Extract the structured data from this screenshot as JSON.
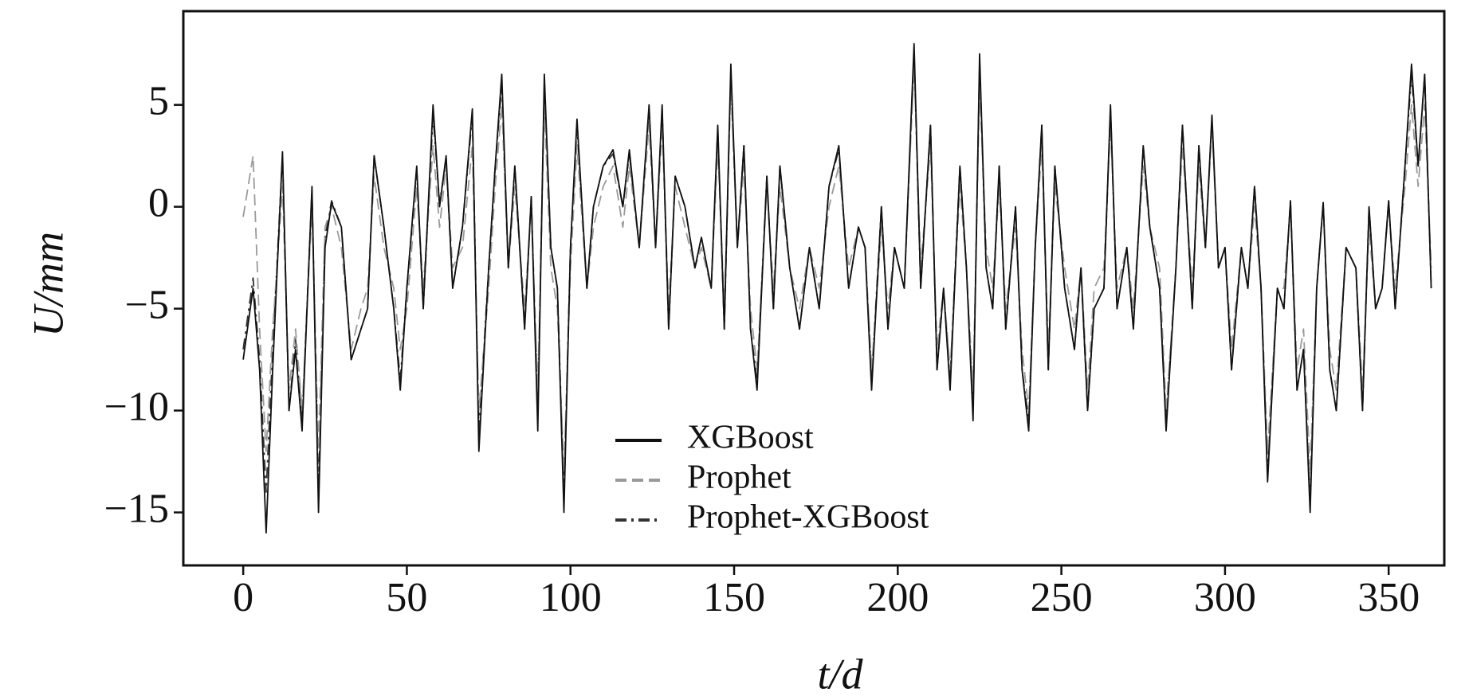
{
  "chart_data": {
    "type": "line",
    "xlabel": "t/d",
    "ylabel": "U/mm",
    "x": [
      0,
      3,
      5,
      7,
      9,
      12,
      14,
      16,
      18,
      21,
      23,
      25,
      27,
      30,
      33,
      36,
      38,
      40,
      43,
      46,
      48,
      50,
      53,
      55,
      58,
      60,
      62,
      64,
      67,
      70,
      72,
      75,
      77,
      79,
      81,
      83,
      86,
      88,
      90,
      92,
      94,
      96,
      98,
      100,
      102,
      105,
      107,
      110,
      113,
      116,
      118,
      121,
      124,
      126,
      128,
      130,
      132,
      135,
      138,
      140,
      143,
      145,
      147,
      149,
      151,
      153,
      155,
      157,
      160,
      162,
      164,
      167,
      170,
      173,
      176,
      179,
      182,
      185,
      188,
      190,
      192,
      195,
      197,
      199,
      202,
      205,
      207,
      210,
      212,
      214,
      216,
      219,
      221,
      223,
      225,
      227,
      229,
      231,
      233,
      236,
      238,
      240,
      242,
      244,
      246,
      248,
      251,
      254,
      256,
      258,
      260,
      263,
      265,
      267,
      270,
      272,
      275,
      277,
      280,
      282,
      285,
      287,
      290,
      292,
      294,
      296,
      298,
      300,
      302,
      305,
      307,
      309,
      311,
      313,
      316,
      318,
      320,
      322,
      324,
      326,
      328,
      330,
      332,
      334,
      337,
      340,
      342,
      344,
      346,
      348,
      350,
      352,
      355,
      357,
      359,
      361,
      363
    ],
    "series": [
      {
        "name": "XGBoost",
        "color": "#111111",
        "dash": "solid",
        "values": [
          -7.5,
          -4,
          -8,
          -16,
          -8,
          2.7,
          -10,
          -7,
          -11,
          1,
          -15,
          -2,
          0.2,
          -1,
          -7.5,
          -6,
          -5,
          2.5,
          -1,
          -5,
          -9,
          -4,
          2,
          -5,
          5,
          0,
          2.5,
          -4,
          -1,
          4.8,
          -12,
          -3,
          2,
          6.5,
          -3,
          2,
          -6,
          0.5,
          -11,
          6.5,
          -2,
          -4,
          -15,
          -2,
          4.3,
          -4,
          0,
          2,
          2.8,
          0,
          2.8,
          -2,
          5,
          -2,
          5,
          -6,
          1.5,
          0,
          -3,
          -1.5,
          -4,
          4,
          -6,
          7,
          -2,
          3,
          -6,
          -9,
          1.5,
          -5,
          2,
          -3,
          -6,
          -2,
          -5,
          1,
          3,
          -4,
          -1,
          -2,
          -9,
          0,
          -6,
          -2,
          -4,
          8,
          -4,
          4,
          -8,
          -4,
          -9,
          2,
          -3,
          -10.5,
          7.5,
          -3,
          -5,
          2,
          -6,
          0,
          -8,
          -11,
          -2,
          4,
          -8,
          2,
          -4,
          -7,
          -3,
          -10,
          -5,
          -4,
          5,
          -5,
          -2,
          -6,
          3,
          -1,
          -4,
          -11,
          -3,
          4,
          -5,
          3,
          -2,
          4.5,
          -3,
          -2,
          -8,
          -2,
          -4,
          1,
          -4,
          -13.5,
          -4,
          -5,
          0.3,
          -9,
          -7,
          -15,
          -4,
          0.2,
          -8,
          -10,
          -2,
          -3,
          -10,
          0,
          -5,
          -4,
          0.3,
          -5,
          2,
          7,
          2,
          6.5,
          -4
        ]
      },
      {
        "name": "Prophet",
        "color": "#9a9a9a",
        "dash": "dashed",
        "values": [
          -0.5,
          2.5,
          -6,
          -12,
          -6,
          1,
          -9,
          -6,
          -10,
          0,
          -12,
          -1,
          0,
          -2,
          -7,
          -5,
          -4,
          1.5,
          -2,
          -4,
          -7,
          -5,
          1,
          -4,
          3,
          -1,
          2,
          -3,
          -2,
          3,
          -10,
          -4,
          1,
          5,
          -3,
          1,
          -5,
          0,
          -9,
          5,
          -3,
          -5,
          -13,
          -3,
          3,
          -4,
          -1,
          1,
          2,
          -1,
          2,
          -2,
          4,
          -2,
          4,
          -5,
          1,
          -1,
          -3,
          -2,
          -4,
          3,
          -5,
          6,
          -2,
          2,
          -5,
          -8,
          1,
          -4,
          1,
          -3,
          -5,
          -2,
          -4,
          0,
          2,
          -3,
          -1,
          -2,
          -8,
          -1,
          -5,
          -2,
          -4,
          7,
          -3,
          3,
          -7,
          -4,
          -8,
          1,
          -3,
          -9,
          6,
          -2,
          -4,
          1,
          -5,
          -1,
          -7,
          -10,
          -2,
          3,
          -7,
          1,
          -3,
          -6,
          -3,
          -9,
          -4,
          -3,
          4,
          -4,
          -2,
          -5,
          2,
          -1,
          -3,
          -10,
          -3,
          3,
          -4,
          2,
          -2,
          4,
          -3,
          -2,
          -7,
          -2,
          -4,
          0,
          -4,
          -12,
          -4,
          -4,
          0,
          -8,
          -6,
          -13,
          -4,
          0,
          -7,
          -9,
          -2,
          -3,
          -9,
          -1,
          -5,
          -4,
          0,
          -4,
          1,
          5,
          1,
          5,
          -3
        ]
      },
      {
        "name": "Prophet-XGBoost",
        "color": "#333333",
        "dash": "dashdot",
        "values": [
          -7,
          -3.5,
          -7.5,
          -14,
          -7,
          2.5,
          -10,
          -6.5,
          -10.5,
          0.8,
          -14,
          -1.5,
          0.3,
          -1,
          -7.5,
          -6,
          -5,
          2.5,
          -1,
          -5,
          -8.5,
          -4,
          1.8,
          -5,
          4.5,
          0.2,
          2.3,
          -4,
          -1,
          4.5,
          -11,
          -3,
          2,
          6,
          -3,
          2,
          -6,
          0.5,
          -10,
          6,
          -2,
          -4,
          -14,
          -2,
          4,
          -4,
          0,
          2,
          2.6,
          0,
          2.6,
          -2,
          4.8,
          -2,
          4.8,
          -6,
          1.5,
          0,
          -3,
          -1.5,
          -4,
          3.8,
          -6,
          6.5,
          -2,
          3,
          -6,
          -8.5,
          1.5,
          -5,
          2,
          -3,
          -6,
          -2,
          -5,
          1,
          2.8,
          -4,
          -1,
          -2,
          -8.5,
          0,
          -6,
          -2,
          -4,
          7.5,
          -4,
          4,
          -8,
          -4,
          -8.5,
          2,
          -3,
          -10,
          7,
          -3,
          -5,
          2,
          -6,
          0,
          -8,
          -10.5,
          -2,
          4,
          -8,
          2,
          -4,
          -7,
          -3,
          -10,
          -5,
          -4,
          4.8,
          -5,
          -2,
          -6,
          3,
          -1,
          -4,
          -10.5,
          -3,
          4,
          -5,
          3,
          -2,
          4.3,
          -3,
          -2,
          -8,
          -2,
          -4,
          1,
          -4,
          -13,
          -4,
          -5,
          0.3,
          -9,
          -7,
          -14.5,
          -4,
          0.2,
          -8,
          -10,
          -2,
          -3,
          -10,
          0,
          -5,
          -4,
          0.3,
          -5,
          2,
          6.5,
          2,
          6.5,
          -4
        ]
      }
    ],
    "xlim": [
      -18.3,
      367
    ],
    "ylim": [
      -17.6,
      9.6
    ],
    "xticks": [
      0,
      50,
      100,
      150,
      200,
      250,
      300,
      350
    ],
    "yticks": [
      {
        "value": -15,
        "label": "−15"
      },
      {
        "value": -10,
        "label": "−10"
      },
      {
        "value": -5,
        "label": "−5"
      },
      0,
      5
    ],
    "legend": "lower-center"
  }
}
